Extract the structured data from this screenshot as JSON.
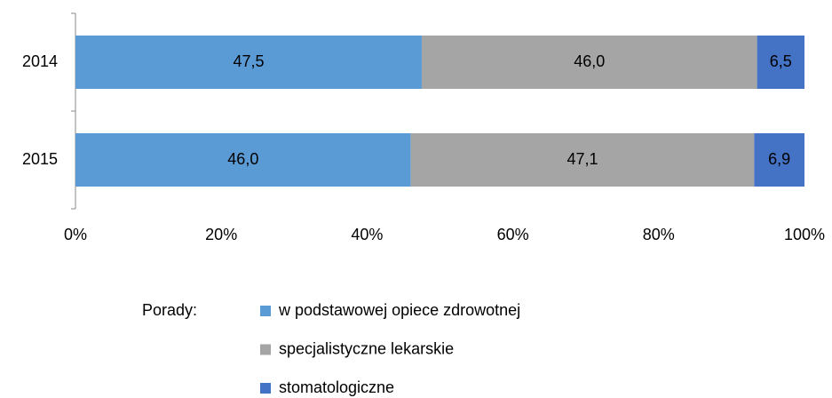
{
  "chart_data": {
    "type": "stacked_bar_horizontal",
    "categories": [
      "2014",
      "2015"
    ],
    "series": [
      {
        "name": "w podstawowej opiece zdrowotnej",
        "color": "#5b9bd5",
        "values": [
          47.5,
          46.0
        ],
        "value_labels": [
          "47,5",
          "46,0"
        ]
      },
      {
        "name": "specjalistyczne lekarskie",
        "color": "#a5a5a5",
        "values": [
          46.0,
          47.1
        ],
        "value_labels": [
          "46,0",
          "47,1"
        ]
      },
      {
        "name": "stomatologiczne",
        "color": "#4472c4",
        "values": [
          6.5,
          6.9
        ],
        "value_labels": [
          "6,5",
          "6,9"
        ]
      }
    ],
    "xlim": [
      0,
      100
    ],
    "xticks": [
      {
        "value": 0,
        "label": "0%"
      },
      {
        "value": 20,
        "label": "20%"
      },
      {
        "value": 40,
        "label": "40%"
      },
      {
        "value": 60,
        "label": "60%"
      },
      {
        "value": 80,
        "label": "80%"
      },
      {
        "value": 100,
        "label": "100%"
      }
    ],
    "grid": false,
    "legend_title": "Porady:",
    "legend": "bottom"
  }
}
